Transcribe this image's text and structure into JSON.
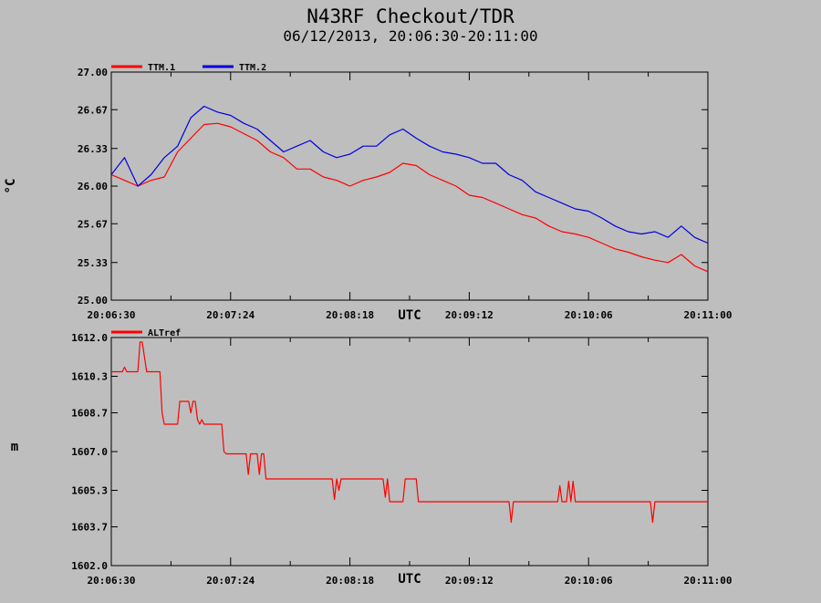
{
  "title": "N43RF Checkout/TDR",
  "subtitle": "06/12/2013, 20:06:30-20:11:00",
  "colors": {
    "background": "#bebebe",
    "ttm1": "#ff0000",
    "ttm2": "#0000e0",
    "altref": "#ff0000",
    "axes": "#000000"
  },
  "chart_data": [
    {
      "type": "line",
      "title": "",
      "xlabel": "UTC",
      "ylabel": "°C",
      "xlim": [
        "20:06:30",
        "20:11:00"
      ],
      "ylim": [
        25.0,
        27.0
      ],
      "xticks": [
        "20:06:30",
        "20:07:24",
        "20:08:18",
        "20:09:12",
        "20:10:06",
        "20:11:00"
      ],
      "yticks": [
        "25.00",
        "25.33",
        "25.67",
        "26.00",
        "26.33",
        "26.67",
        "27.00"
      ],
      "legend_position": "top-left",
      "grid": false,
      "x": [
        "20:06:30",
        "20:06:36",
        "20:06:42",
        "20:06:48",
        "20:06:54",
        "20:07:00",
        "20:07:06",
        "20:07:12",
        "20:07:18",
        "20:07:24",
        "20:07:30",
        "20:07:36",
        "20:07:42",
        "20:07:48",
        "20:07:54",
        "20:08:00",
        "20:08:06",
        "20:08:12",
        "20:08:18",
        "20:08:24",
        "20:08:30",
        "20:08:36",
        "20:08:42",
        "20:08:48",
        "20:08:54",
        "20:09:00",
        "20:09:06",
        "20:09:12",
        "20:09:18",
        "20:09:24",
        "20:09:30",
        "20:09:36",
        "20:09:42",
        "20:09:48",
        "20:09:54",
        "20:10:00",
        "20:10:06",
        "20:10:12",
        "20:10:18",
        "20:10:24",
        "20:10:30",
        "20:10:36",
        "20:10:42",
        "20:10:48",
        "20:10:54",
        "20:11:00"
      ],
      "series": [
        {
          "name": "TTM.1",
          "color": "#ff0000",
          "values": [
            26.1,
            26.05,
            26.0,
            26.05,
            26.08,
            26.3,
            26.42,
            26.54,
            26.55,
            26.52,
            26.46,
            26.4,
            26.3,
            26.25,
            26.15,
            26.15,
            26.08,
            26.05,
            26.0,
            26.05,
            26.08,
            26.12,
            26.2,
            26.18,
            26.1,
            26.05,
            26.0,
            25.92,
            25.9,
            25.85,
            25.8,
            25.75,
            25.72,
            25.65,
            25.6,
            25.58,
            25.55,
            25.5,
            25.45,
            25.42,
            25.38,
            25.35,
            25.33,
            25.4,
            25.3,
            25.25
          ]
        },
        {
          "name": "TTM.2",
          "color": "#0000e0",
          "values": [
            26.1,
            26.25,
            26.0,
            26.1,
            26.25,
            26.35,
            26.6,
            26.7,
            26.65,
            26.62,
            26.55,
            26.5,
            26.4,
            26.3,
            26.35,
            26.4,
            26.3,
            26.25,
            26.28,
            26.35,
            26.35,
            26.45,
            26.5,
            26.42,
            26.35,
            26.3,
            26.28,
            26.25,
            26.2,
            26.2,
            26.1,
            26.05,
            25.95,
            25.9,
            25.85,
            25.8,
            25.78,
            25.72,
            25.65,
            25.6,
            25.58,
            25.6,
            25.55,
            25.65,
            25.55,
            25.5
          ]
        }
      ]
    },
    {
      "type": "line",
      "title": "",
      "xlabel": "UTC",
      "ylabel": "m",
      "xlim": [
        "20:06:30",
        "20:11:00"
      ],
      "ylim": [
        1602.0,
        1612.0
      ],
      "xticks": [
        "20:06:30",
        "20:07:24",
        "20:08:18",
        "20:09:12",
        "20:10:06",
        "20:11:00"
      ],
      "yticks": [
        "1602.0",
        "1603.7",
        "1605.3",
        "1607.0",
        "1608.7",
        "1610.3",
        "1612.0"
      ],
      "legend_position": "top-left",
      "grid": false,
      "series": [
        {
          "name": "ALTref",
          "color": "#ff0000",
          "points": [
            [
              "20:06:30",
              1610.5
            ],
            [
              "20:06:35",
              1610.5
            ],
            [
              "20:06:36",
              1610.7
            ],
            [
              "20:06:37",
              1610.5
            ],
            [
              "20:06:42",
              1610.5
            ],
            [
              "20:06:43",
              1611.8
            ],
            [
              "20:06:44",
              1611.8
            ],
            [
              "20:06:46",
              1610.5
            ],
            [
              "20:06:52",
              1610.5
            ],
            [
              "20:06:53",
              1608.7
            ],
            [
              "20:06:54",
              1608.2
            ],
            [
              "20:07:00",
              1608.2
            ],
            [
              "20:07:01",
              1609.2
            ],
            [
              "20:07:05",
              1609.2
            ],
            [
              "20:07:06",
              1608.7
            ],
            [
              "20:07:07",
              1609.2
            ],
            [
              "20:07:08",
              1609.2
            ],
            [
              "20:07:09",
              1608.4
            ],
            [
              "20:07:10",
              1608.2
            ],
            [
              "20:07:11",
              1608.4
            ],
            [
              "20:07:12",
              1608.2
            ],
            [
              "20:07:20",
              1608.2
            ],
            [
              "20:07:21",
              1607.0
            ],
            [
              "20:07:22",
              1606.9
            ],
            [
              "20:07:31",
              1606.9
            ],
            [
              "20:07:32",
              1606.0
            ],
            [
              "20:07:33",
              1606.9
            ],
            [
              "20:07:36",
              1606.9
            ],
            [
              "20:07:37",
              1606.0
            ],
            [
              "20:07:38",
              1606.9
            ],
            [
              "20:07:39",
              1606.9
            ],
            [
              "20:07:40",
              1605.8
            ],
            [
              "20:08:10",
              1605.8
            ],
            [
              "20:08:11",
              1604.9
            ],
            [
              "20:08:12",
              1605.8
            ],
            [
              "20:08:13",
              1605.3
            ],
            [
              "20:08:14",
              1605.8
            ],
            [
              "20:08:33",
              1605.8
            ],
            [
              "20:08:34",
              1605.0
            ],
            [
              "20:08:35",
              1605.8
            ],
            [
              "20:08:36",
              1604.8
            ],
            [
              "20:08:42",
              1604.8
            ],
            [
              "20:08:43",
              1605.8
            ],
            [
              "20:08:48",
              1605.8
            ],
            [
              "20:08:49",
              1604.8
            ],
            [
              "20:09:30",
              1604.8
            ],
            [
              "20:09:31",
              1603.9
            ],
            [
              "20:09:32",
              1604.8
            ],
            [
              "20:09:52",
              1604.8
            ],
            [
              "20:09:53",
              1605.5
            ],
            [
              "20:09:54",
              1604.8
            ],
            [
              "20:09:56",
              1604.8
            ],
            [
              "20:09:57",
              1605.7
            ],
            [
              "20:09:58",
              1604.8
            ],
            [
              "20:09:59",
              1605.7
            ],
            [
              "20:10:00",
              1604.8
            ],
            [
              "20:10:34",
              1604.8
            ],
            [
              "20:10:35",
              1603.9
            ],
            [
              "20:10:36",
              1604.8
            ],
            [
              "20:11:00",
              1604.8
            ]
          ]
        }
      ]
    }
  ]
}
